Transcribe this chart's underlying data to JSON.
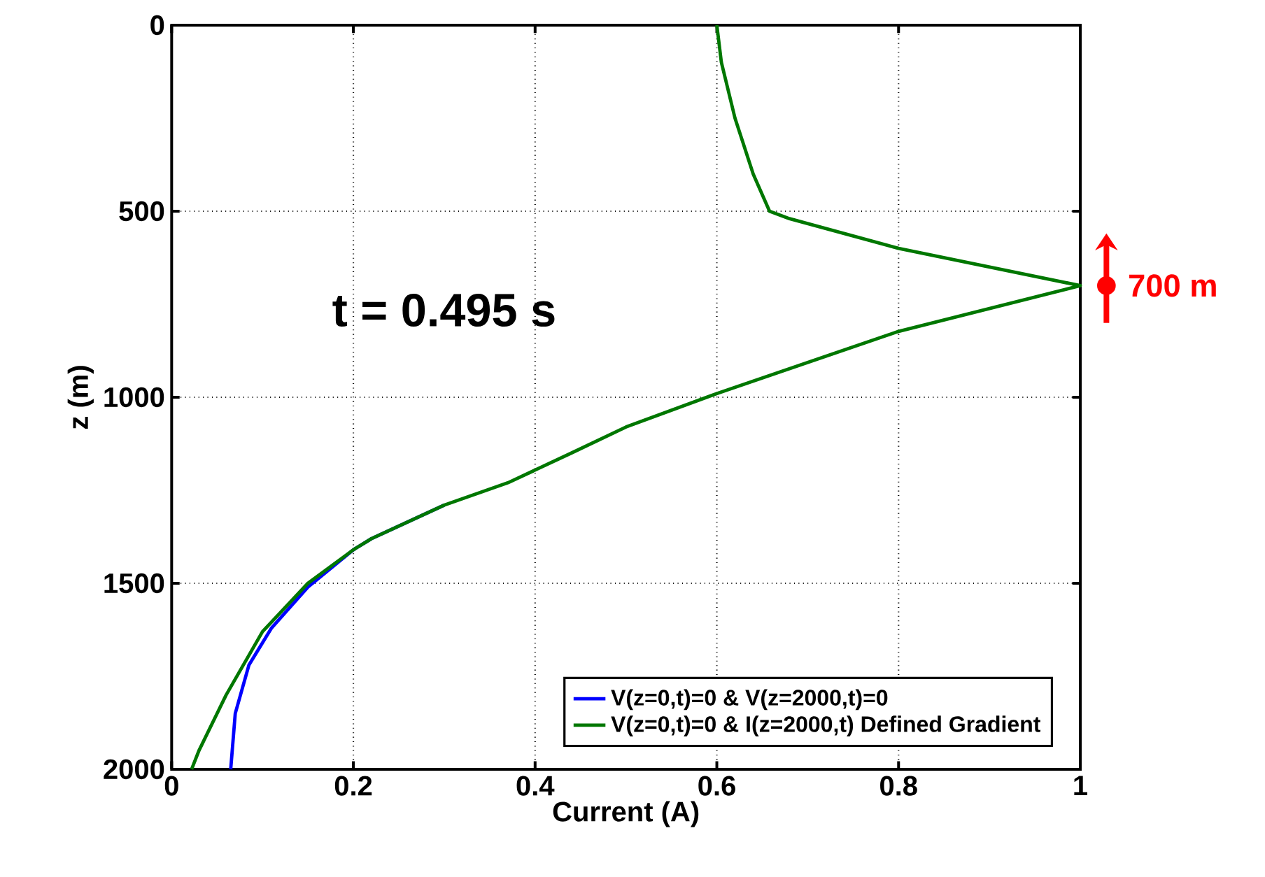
{
  "chart_data": {
    "type": "line",
    "xlabel": "Current (A)",
    "ylabel": "z (m)",
    "xlim": [
      0,
      1
    ],
    "xticks": [
      0,
      0.2,
      0.4,
      0.6,
      0.8,
      1
    ],
    "ylim": [
      2000,
      0
    ],
    "yticks": [
      0,
      500,
      1000,
      1500,
      2000
    ],
    "grid": true,
    "legend": "bottom right",
    "line_style": "solid",
    "marker": "none",
    "annotations": [
      "t = 0.495 s",
      {
        "text": "700 m",
        "x": 1,
        "y": 700
      }
    ],
    "series": [
      {
        "name": "V(z=0,t)=0 & V(z=2000,t)=0",
        "color": "#0000ff",
        "x": [
          0.3,
          0.22,
          0.2,
          0.15,
          0.11,
          0.085,
          0.07,
          0.065
        ],
        "values": [
          1290,
          1380,
          1410,
          1510,
          1620,
          1720,
          1850,
          2000
        ]
      },
      {
        "name": "V(z=0,t)=0 & I(z=2000,t) Defined Gradient",
        "color": "#007700",
        "x": [
          0.6,
          0.605,
          0.62,
          0.64,
          0.658,
          0.68,
          0.8,
          1,
          0.8,
          0.6,
          0.5,
          0.44,
          0.37,
          0.3,
          0.22,
          0.2,
          0.15,
          0.1,
          0.06,
          0.03,
          0.022
        ],
        "values": [
          0,
          100,
          250,
          400,
          500,
          520,
          600,
          700,
          823,
          990,
          1080,
          1150,
          1230,
          1290,
          1380,
          1410,
          1500,
          1630,
          1800,
          1950,
          2000
        ]
      }
    ]
  }
}
